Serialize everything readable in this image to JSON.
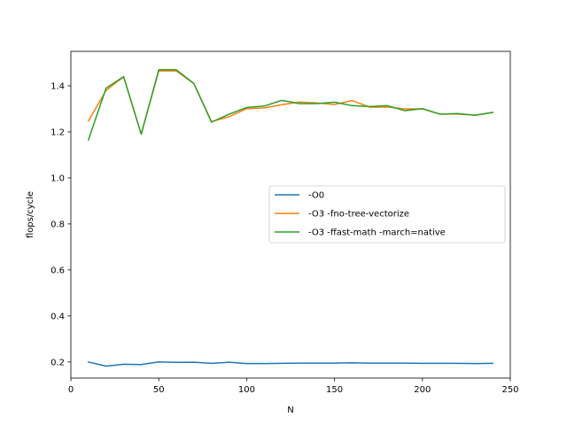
{
  "chart_data": {
    "type": "line",
    "title": "",
    "xlabel": "N",
    "ylabel": "flops/cycle",
    "xlim": [
      0,
      250
    ],
    "ylim": [
      0.13,
      1.55
    ],
    "xticks": [
      0,
      50,
      100,
      150,
      200,
      250
    ],
    "yticks": [
      0.2,
      0.4,
      0.6,
      0.8,
      1.0,
      1.2,
      1.4
    ],
    "xtick_labels": [
      "0",
      "50",
      "100",
      "150",
      "200",
      "250"
    ],
    "ytick_labels": [
      "0.2",
      "0.4",
      "0.6",
      "0.8",
      "1.0",
      "1.2",
      "1.4"
    ],
    "grid": false,
    "legend_position": "center-right",
    "x": [
      10,
      20,
      30,
      40,
      50,
      60,
      70,
      80,
      90,
      100,
      110,
      120,
      130,
      140,
      150,
      160,
      170,
      180,
      190,
      200,
      210,
      220,
      230,
      240
    ],
    "series": [
      {
        "name": "-O0",
        "color": "#1f77b4",
        "values": [
          0.2,
          0.182,
          0.19,
          0.189,
          0.2,
          0.198,
          0.199,
          0.194,
          0.199,
          0.193,
          0.193,
          0.194,
          0.195,
          0.195,
          0.195,
          0.196,
          0.195,
          0.195,
          0.195,
          0.194,
          0.194,
          0.194,
          0.193,
          0.194
        ]
      },
      {
        "name": "-O3 -fno-tree-vectorize",
        "color": "#ff7f0e",
        "values": [
          1.248,
          1.38,
          1.44,
          1.19,
          1.465,
          1.465,
          1.41,
          1.245,
          1.266,
          1.301,
          1.304,
          1.318,
          1.33,
          1.326,
          1.319,
          1.336,
          1.307,
          1.308,
          1.3,
          1.3,
          1.277,
          1.277,
          1.273,
          1.284
        ]
      },
      {
        "name": "-O3 -ffast-math -march=native",
        "color": "#2ca02c",
        "values": [
          1.165,
          1.39,
          1.44,
          1.19,
          1.47,
          1.47,
          1.41,
          1.242,
          1.277,
          1.306,
          1.312,
          1.337,
          1.323,
          1.323,
          1.329,
          1.314,
          1.31,
          1.314,
          1.292,
          1.301,
          1.277,
          1.28,
          1.272,
          1.285
        ]
      }
    ]
  }
}
